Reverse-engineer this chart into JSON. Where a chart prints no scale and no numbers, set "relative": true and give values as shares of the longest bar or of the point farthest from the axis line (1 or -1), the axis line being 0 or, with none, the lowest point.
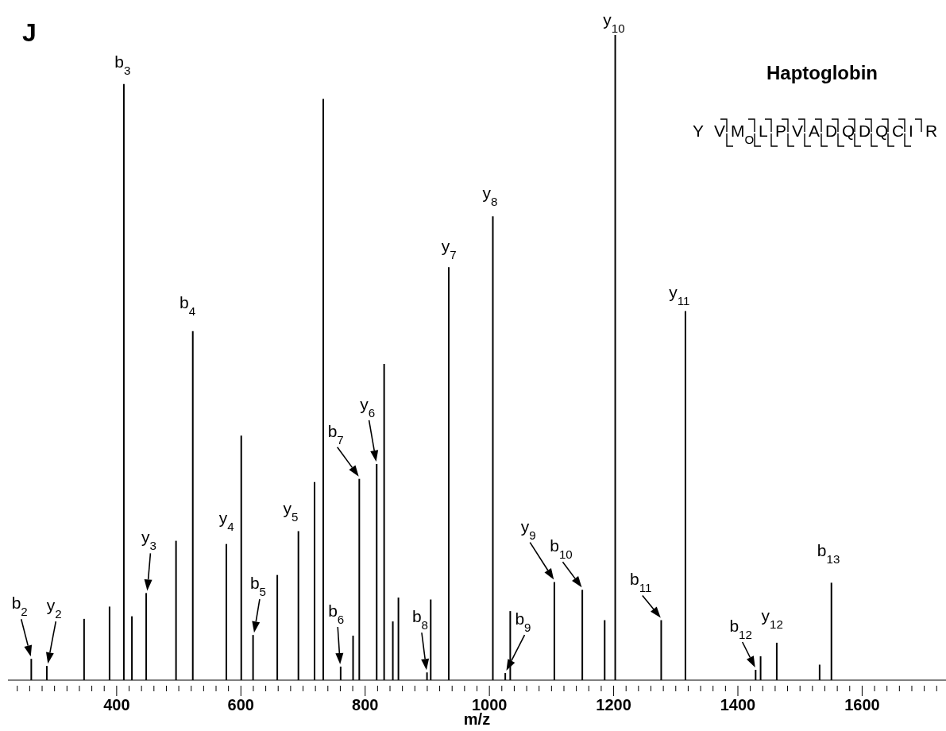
{
  "chart_data": {
    "type": "bar",
    "title": "Haptoglobin",
    "xlabel": "m/z",
    "relative": true,
    "color": "#000000",
    "x": [
      263,
      288,
      348,
      389,
      412,
      425,
      448,
      496,
      523,
      577,
      601,
      620,
      659,
      693,
      719,
      733,
      761,
      781,
      791,
      819,
      831,
      845,
      854,
      900,
      906,
      935,
      1006,
      1026,
      1034,
      1105,
      1150,
      1186,
      1203,
      1277,
      1316,
      1429,
      1437,
      1463,
      1532,
      1551
    ],
    "values": [
      0.033,
      0.022,
      0.095,
      0.114,
      0.924,
      0.099,
      0.135,
      0.216,
      0.541,
      0.211,
      0.379,
      0.07,
      0.163,
      0.231,
      0.307,
      0.901,
      0.021,
      0.069,
      0.312,
      0.335,
      0.49,
      0.091,
      0.128,
      0.012,
      0.125,
      0.64,
      0.719,
      0.011,
      0.107,
      0.152,
      0.14,
      0.093,
      1,
      0.093,
      0.572,
      0.016,
      0.037,
      0.058,
      0.024,
      0.151
    ],
    "xlim": [
      225,
      1735
    ],
    "xticks": [
      {
        "value": 240,
        "label": null
      },
      {
        "value": 260,
        "label": null
      },
      {
        "value": 280,
        "label": null
      },
      {
        "value": 300,
        "label": null
      },
      {
        "value": 320,
        "label": null
      },
      {
        "value": 340,
        "label": null
      },
      {
        "value": 360,
        "label": null
      },
      {
        "value": 380,
        "label": null
      },
      400,
      {
        "value": 420,
        "label": null
      },
      {
        "value": 440,
        "label": null
      },
      {
        "value": 460,
        "label": null
      },
      {
        "value": 480,
        "label": null
      },
      {
        "value": 500,
        "label": null
      },
      {
        "value": 520,
        "label": null
      },
      {
        "value": 540,
        "label": null
      },
      {
        "value": 560,
        "label": null
      },
      {
        "value": 580,
        "label": null
      },
      600,
      {
        "value": 620,
        "label": null
      },
      {
        "value": 640,
        "label": null
      },
      {
        "value": 660,
        "label": null
      },
      {
        "value": 680,
        "label": null
      },
      {
        "value": 700,
        "label": null
      },
      {
        "value": 720,
        "label": null
      },
      {
        "value": 740,
        "label": null
      },
      {
        "value": 760,
        "label": null
      },
      {
        "value": 780,
        "label": null
      },
      800,
      {
        "value": 820,
        "label": null
      },
      {
        "value": 840,
        "label": null
      },
      {
        "value": 860,
        "label": null
      },
      {
        "value": 880,
        "label": null
      },
      {
        "value": 900,
        "label": null
      },
      {
        "value": 920,
        "label": null
      },
      {
        "value": 940,
        "label": null
      },
      {
        "value": 960,
        "label": null
      },
      {
        "value": 980,
        "label": null
      },
      1000,
      {
        "value": 1020,
        "label": null
      },
      {
        "value": 1040,
        "label": null
      },
      {
        "value": 1060,
        "label": null
      },
      {
        "value": 1080,
        "label": null
      },
      {
        "value": 1100,
        "label": null
      },
      {
        "value": 1120,
        "label": null
      },
      {
        "value": 1140,
        "label": null
      },
      {
        "value": 1160,
        "label": null
      },
      {
        "value": 1180,
        "label": null
      },
      1200,
      {
        "value": 1220,
        "label": null
      },
      {
        "value": 1240,
        "label": null
      },
      {
        "value": 1260,
        "label": null
      },
      {
        "value": 1280,
        "label": null
      },
      {
        "value": 1300,
        "label": null
      },
      {
        "value": 1320,
        "label": null
      },
      {
        "value": 1340,
        "label": null
      },
      {
        "value": 1360,
        "label": null
      },
      {
        "value": 1380,
        "label": null
      },
      1400,
      {
        "value": 1420,
        "label": null
      },
      {
        "value": 1440,
        "label": null
      },
      {
        "value": 1460,
        "label": null
      },
      {
        "value": 1480,
        "label": null
      },
      {
        "value": 1500,
        "label": null
      },
      {
        "value": 1520,
        "label": null
      },
      {
        "value": 1540,
        "label": null
      },
      {
        "value": 1560,
        "label": null
      },
      {
        "value": 1580,
        "label": null
      },
      1600,
      {
        "value": 1620,
        "label": null
      },
      {
        "value": 1640,
        "label": null
      },
      {
        "value": 1660,
        "label": null
      },
      {
        "value": 1680,
        "label": null
      },
      {
        "value": 1700,
        "label": null
      },
      {
        "value": 1720,
        "label": null
      }
    ],
    "annotations": [
      "J",
      "Y V M$_{O}$ L P V A D Q D Q C I R",
      {
        "text": "b$_{2}$",
        "x": 263,
        "y": 0.033
      },
      {
        "text": "y$_{2}$",
        "x": 288,
        "y": 0.022
      },
      {
        "text": "b$_{3}$",
        "x": 412,
        "y": 0.924
      },
      {
        "text": "y$_{3}$",
        "x": 448,
        "y": 0.135
      },
      {
        "text": "b$_{4}$",
        "x": 523,
        "y": 0.541
      },
      {
        "text": "y$_{4}$",
        "x": 577,
        "y": 0.211
      },
      {
        "text": "b$_{5}$",
        "x": 620,
        "y": 0.07
      },
      {
        "text": "y$_{5}$",
        "x": 693,
        "y": 0.231
      },
      {
        "text": "b$_{6}$",
        "x": 761,
        "y": 0.021
      },
      {
        "text": "b$_{7}$",
        "x": 791,
        "y": 0.312
      },
      {
        "text": "y$_{6}$",
        "x": 819,
        "y": 0.335
      },
      {
        "text": "b$_{8}$",
        "x": 900,
        "y": 0.012
      },
      {
        "text": "y$_{7}$",
        "x": 935,
        "y": 0.64
      },
      {
        "text": "y$_{8}$",
        "x": 1006,
        "y": 0.719
      },
      {
        "text": "b$_{9}$",
        "x": 1026,
        "y": 0.011
      },
      {
        "text": "y$_{9}$",
        "x": 1105,
        "y": 0.152
      },
      {
        "text": "b$_{10}$",
        "x": 1150,
        "y": 0.14
      },
      {
        "text": "y$_{10}$",
        "x": 1203,
        "y": 1
      },
      {
        "text": "b$_{11}$",
        "x": 1277,
        "y": 0.093
      },
      {
        "text": "y$_{11}$",
        "x": 1316,
        "y": 0.572
      },
      {
        "text": "b$_{12}$",
        "x": 1429,
        "y": 0.016
      },
      {
        "text": "y$_{12}$",
        "x": 1463,
        "y": 0.058
      },
      {
        "text": "b$_{13}$",
        "x": 1551,
        "y": 0.151
      }
    ]
  }
}
